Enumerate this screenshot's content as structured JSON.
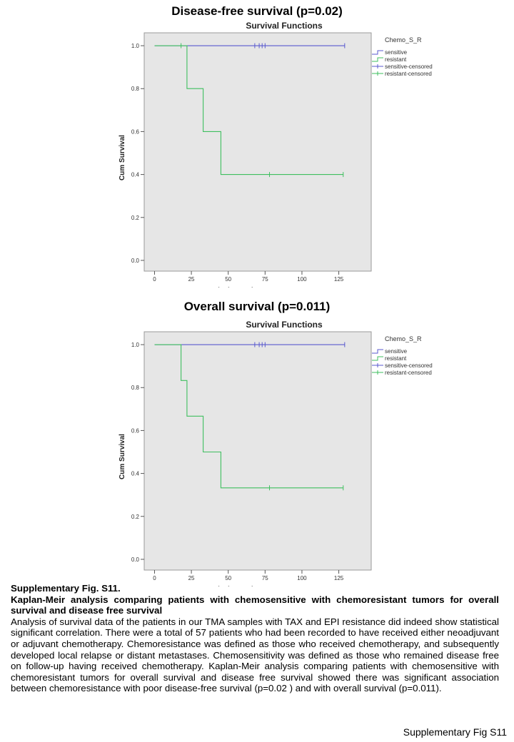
{
  "chart_data": [
    {
      "type": "line",
      "panel_title": "Disease-free survival (p=0.02)",
      "title": "Survival Functions",
      "xlabel": "survival_month",
      "ylabel": "Cum Survival",
      "xlim": [
        -7,
        147
      ],
      "ylim": [
        -0.05,
        1.06
      ],
      "x_ticks": [
        0,
        25,
        50,
        75,
        100,
        125
      ],
      "y_ticks": [
        0.0,
        0.2,
        0.4,
        0.6,
        0.8,
        1.0
      ],
      "legend_title": "Chemo_S_R",
      "legend": [
        "sensitive",
        "resistant",
        "sensitive-censored",
        "resistant-censored"
      ],
      "series": [
        {
          "name": "sensitive",
          "color": "#5a5acf",
          "steps": [
            [
              0,
              1.0
            ],
            [
              129,
              1.0
            ]
          ],
          "censored": [
            [
              68,
              1.0
            ],
            [
              71,
              1.0
            ],
            [
              73,
              1.0
            ],
            [
              75,
              1.0
            ],
            [
              129,
              1.0
            ]
          ]
        },
        {
          "name": "resistant",
          "color": "#3fbf5f",
          "steps": [
            [
              0,
              1.0
            ],
            [
              22,
              1.0
            ],
            [
              22,
              0.8
            ],
            [
              33,
              0.8
            ],
            [
              33,
              0.6
            ],
            [
              45,
              0.6
            ],
            [
              45,
              0.4
            ],
            [
              128,
              0.4
            ]
          ],
          "censored": [
            [
              18,
              1.0
            ],
            [
              78,
              0.4
            ],
            [
              128,
              0.4
            ]
          ]
        }
      ]
    },
    {
      "type": "line",
      "panel_title": "Overall survival (p=0.011)",
      "title": "Survival Functions",
      "xlabel": "survival_month",
      "ylabel": "Cum Survival",
      "xlim": [
        -7,
        147
      ],
      "ylim": [
        -0.05,
        1.06
      ],
      "x_ticks": [
        0,
        25,
        50,
        75,
        100,
        125
      ],
      "y_ticks": [
        0.0,
        0.2,
        0.4,
        0.6,
        0.8,
        1.0
      ],
      "legend_title": "Chemo_S_R",
      "legend": [
        "sensitive",
        "resistant",
        "sensitive-censored",
        "resistant-censored"
      ],
      "series": [
        {
          "name": "sensitive",
          "color": "#5a5acf",
          "steps": [
            [
              0,
              1.0
            ],
            [
              129,
              1.0
            ]
          ],
          "censored": [
            [
              68,
              1.0
            ],
            [
              71,
              1.0
            ],
            [
              73,
              1.0
            ],
            [
              75,
              1.0
            ],
            [
              129,
              1.0
            ]
          ]
        },
        {
          "name": "resistant",
          "color": "#3fbf5f",
          "steps": [
            [
              0,
              1.0
            ],
            [
              18,
              1.0
            ],
            [
              18,
              0.833
            ],
            [
              22,
              0.833
            ],
            [
              22,
              0.667
            ],
            [
              33,
              0.667
            ],
            [
              33,
              0.5
            ],
            [
              45,
              0.5
            ],
            [
              45,
              0.333
            ],
            [
              128,
              0.333
            ]
          ],
          "censored": [
            [
              78,
              0.333
            ],
            [
              128,
              0.333
            ]
          ]
        }
      ]
    }
  ],
  "caption": {
    "label": "Supplementary Fig. S11.",
    "heading": "Kaplan-Meir analysis comparing patients with chemosensitive with chemoresistant tumors for overall survival and disease free survival",
    "body": "Analysis of survival data of the patients in our TMA samples with TAX and EPI resistance did indeed show statistical significant correlation. There were a total of 57 patients who had been recorded to have received either neoadjuvant or adjuvant chemotherapy. Chemoresistance was defined as those who received chemotherapy, and subsequently developed local relapse or distant metastases. Chemosensitivity was defined as those who remained disease free on follow-up having received chemotherapy. Kaplan-Meir analysis comparing patients with chemosensitive with chemoresistant tumors for overall survival and disease free survival showed there was significant association between chemoresistance with poor disease-free survival (p=0.02 ) and with overall survival (p=0.011)."
  },
  "footer": "Supplementary Fig S11"
}
